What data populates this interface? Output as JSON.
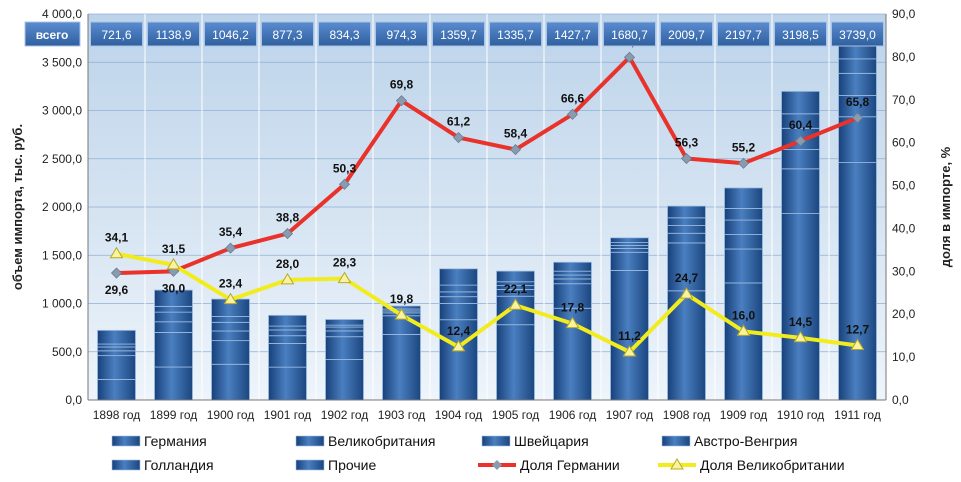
{
  "chart_data": {
    "type": "bar",
    "stacked": true,
    "categories": [
      "1898 год",
      "1899 год",
      "1900 год",
      "1901 год",
      "1902 год",
      "1903 год",
      "1904 год",
      "1905 год",
      "1906 год",
      "1907 год",
      "1908 год",
      "1909 год",
      "1910 год",
      "1911 год"
    ],
    "totals_label": "всего",
    "totals": [
      "721,6",
      "1138,9",
      "1046,2",
      "877,3",
      "834,3",
      "974,3",
      "1359,7",
      "1335,7",
      "1427,7",
      "1680,7",
      "2009,7",
      "2197,7",
      "3198,5",
      "3739,0"
    ],
    "total_values": [
      721.6,
      1138.9,
      1046.2,
      877.3,
      834.3,
      974.3,
      1359.7,
      1335.7,
      1427.7,
      1680.7,
      2009.7,
      2197.7,
      3198.5,
      3739.0
    ],
    "ylabel": "объем импорта, тыс. руб.",
    "y2label": "доля в импорте, %",
    "ylim": [
      0,
      4000
    ],
    "y2lim": [
      0,
      90
    ],
    "y_ticks": [
      "0,0",
      "500,0",
      "1 000,0",
      "1 500,0",
      "2 000,0",
      "2 500,0",
      "3 000,0",
      "3 500,0",
      "4 000,0"
    ],
    "y2_ticks": [
      "0,0",
      "10,0",
      "20,0",
      "30,0",
      "40,0",
      "50,0",
      "60,0",
      "70,0",
      "80,0",
      "90,0"
    ],
    "series": [
      {
        "name": "Германия",
        "kind": "bar",
        "values": [
          213.6,
          341.7,
          370.4,
          340.4,
          419.7,
          680.1,
          831.9,
          780.1,
          950.8,
          1342.9,
          1131.5,
          1213.1,
          1931.9,
          2460.3
        ]
      },
      {
        "name": "Великобритания",
        "kind": "bar",
        "values": [
          246.1,
          358.8,
          244.8,
          245.6,
          236.1,
          192.9,
          168.6,
          295.2,
          254.1,
          188.2,
          496.4,
          351.6,
          463.8,
          474.9
        ]
      },
      {
        "name": "Швейцария",
        "kind": "bar",
        "values": [
          50,
          110,
          100,
          80,
          60,
          30,
          70,
          70,
          50,
          40,
          100,
          150,
          200,
          220
        ]
      },
      {
        "name": "Австро-Венгрия",
        "kind": "bar",
        "values": [
          40,
          100,
          90,
          60,
          40,
          20,
          50,
          40,
          40,
          30,
          80,
          150,
          220,
          230
        ]
      },
      {
        "name": "Голландия",
        "kind": "bar",
        "values": [
          30,
          60,
          60,
          40,
          20,
          20,
          70,
          40,
          40,
          30,
          80,
          120,
          150,
          150
        ]
      },
      {
        "name": "Прочие",
        "kind": "bar",
        "values": [
          141.9,
          168.4,
          181.0,
          111.3,
          58.5,
          31.3,
          169.2,
          110.4,
          92.8,
          49.6,
          121.8,
          213.0,
          232.8,
          203.8
        ]
      },
      {
        "name": "Доля Германии",
        "kind": "line",
        "color": "#e8322a",
        "values": [
          29.6,
          30.0,
          35.4,
          38.8,
          50.3,
          69.8,
          61.2,
          58.4,
          66.6,
          79.9,
          56.3,
          55.2,
          60.4,
          65.8
        ],
        "labels": [
          "29,6",
          "30,0",
          "35,4",
          "38,8",
          "50,3",
          "69,8",
          "61,2",
          "58,4",
          "66,6",
          "79,9",
          "56,3",
          "55,2",
          "60,4",
          "65,8"
        ]
      },
      {
        "name": "Доля Великобритании",
        "kind": "line",
        "color": "#f2ec1e",
        "values": [
          34.1,
          31.5,
          23.4,
          28.0,
          28.3,
          19.8,
          12.4,
          22.1,
          17.8,
          11.2,
          24.7,
          16.0,
          14.5,
          12.7
        ],
        "labels": [
          "34,1",
          "31,5",
          "23,4",
          "28,0",
          "28,3",
          "19,8",
          "12,4",
          "22,1",
          "17,8",
          "11,2",
          "24,7",
          "16,0",
          "14,5",
          "12,7"
        ]
      }
    ],
    "colors": {
      "plot_bg_top": "#bcd3ea",
      "plot_bg_bottom": "#eef4fa",
      "bar_dark": "#1f4f8f",
      "bar_light": "#5d8fcb",
      "box_fill": "#3f72b8",
      "box_stroke": "#a9c4e4"
    },
    "legend_position": "bottom",
    "grid": true
  }
}
